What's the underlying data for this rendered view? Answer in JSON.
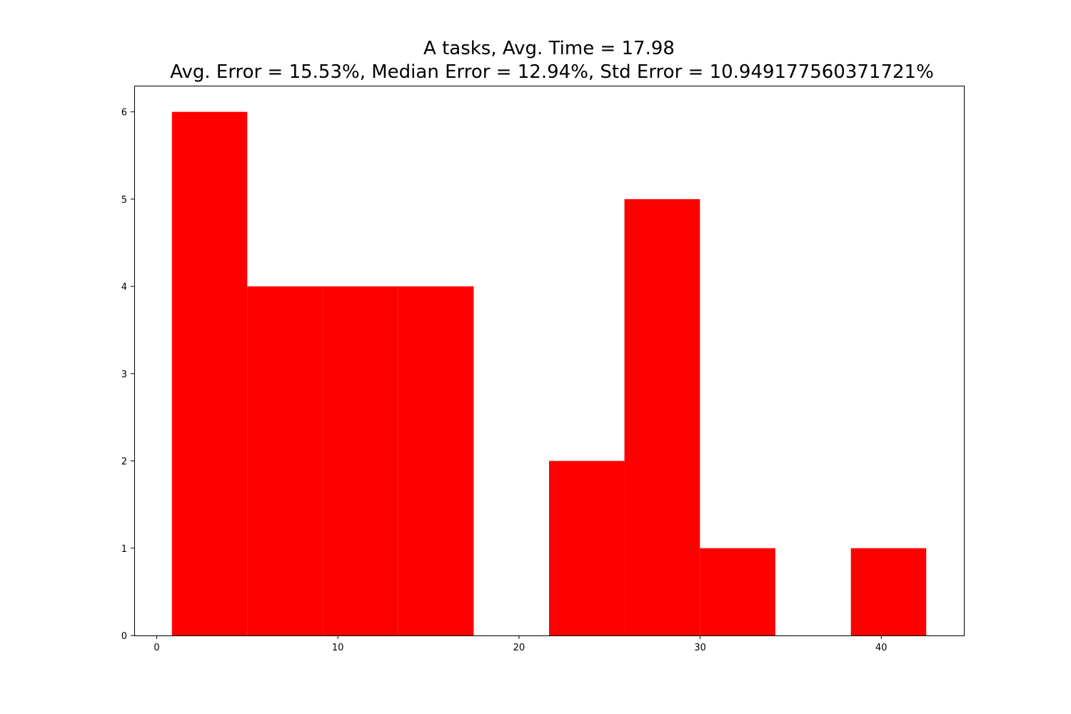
{
  "chart_data": {
    "type": "bar",
    "title_lines": [
      "A tasks, Avg. Time = 17.98",
      "Avg. Error = 15.53%, Median Error = 12.94%, Std Error = 10.949177560371721%"
    ],
    "xlabel": "",
    "ylabel": "",
    "bins": [
      {
        "x0": 0.84,
        "x1": 5.0,
        "count": 6
      },
      {
        "x0": 5.0,
        "x1": 9.17,
        "count": 4
      },
      {
        "x0": 9.17,
        "x1": 13.33,
        "count": 4
      },
      {
        "x0": 13.33,
        "x1": 17.5,
        "count": 4
      },
      {
        "x0": 17.5,
        "x1": 21.66,
        "count": 0
      },
      {
        "x0": 21.66,
        "x1": 25.82,
        "count": 2
      },
      {
        "x0": 25.82,
        "x1": 29.99,
        "count": 5
      },
      {
        "x0": 29.99,
        "x1": 34.15,
        "count": 1
      },
      {
        "x0": 34.15,
        "x1": 38.32,
        "count": 0
      },
      {
        "x0": 38.32,
        "x1": 42.48,
        "count": 1
      }
    ],
    "bar_color": "#ff0000",
    "xlim": [
      -1.24,
      44.56
    ],
    "ylim": [
      0,
      6.3
    ],
    "xticks": [
      0,
      10,
      20,
      30,
      40
    ],
    "yticks": [
      0,
      1,
      2,
      3,
      4,
      5,
      6
    ],
    "grid": false,
    "legend": "none"
  }
}
